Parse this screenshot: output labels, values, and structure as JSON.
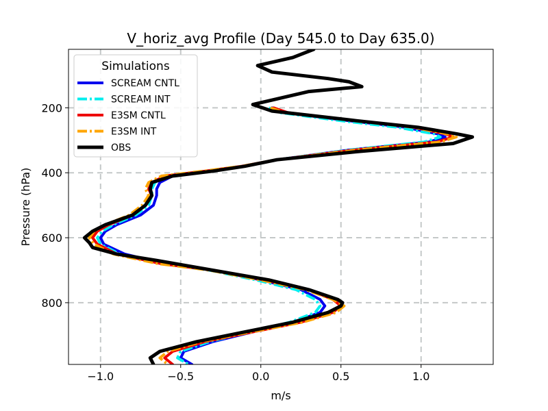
{
  "chart_data": {
    "type": "line",
    "title": "V_horiz_avg Profile (Day 545.0 to Day 635.0)",
    "xlabel": "m/s",
    "ylabel": "Pressure (hPa)",
    "xlim": [
      -1.2,
      1.45
    ],
    "ylim": [
      990,
      20
    ],
    "y_inverted": true,
    "grid": true,
    "xticks": [
      -1.0,
      -0.5,
      0.0,
      0.5,
      1.0
    ],
    "xtick_labels": [
      "−1.0",
      "−0.5",
      "0.0",
      "0.5",
      "1.0"
    ],
    "yticks": [
      200,
      400,
      600,
      800
    ],
    "ytick_labels": [
      "200",
      "400",
      "600",
      "800"
    ],
    "legend": {
      "title": "Simulations",
      "position": "top-left"
    },
    "series": [
      {
        "name": "SCREAM CNTL",
        "color": "#0000ee",
        "dash": "solid",
        "pressure": [
          200,
          215,
          240,
          260,
          280,
          290,
          305,
          330,
          360,
          380,
          395,
          410,
          430,
          450,
          470,
          500,
          530,
          560,
          580,
          600,
          620,
          650,
          680,
          700,
          730,
          760,
          790,
          810,
          830,
          860,
          890,
          920,
          950,
          970,
          990
        ],
        "values": [
          0.07,
          0.15,
          0.55,
          0.9,
          1.1,
          1.15,
          1.05,
          0.55,
          0.1,
          -0.1,
          -0.3,
          -0.55,
          -0.63,
          -0.65,
          -0.65,
          -0.67,
          -0.75,
          -0.9,
          -0.97,
          -1.0,
          -0.98,
          -0.85,
          -0.6,
          -0.3,
          0.0,
          0.25,
          0.37,
          0.4,
          0.37,
          0.2,
          -0.05,
          -0.3,
          -0.48,
          -0.5,
          -0.43
        ]
      },
      {
        "name": "SCREAM INT",
        "color": "#00eeee",
        "dash": "dashdot",
        "pressure": [
          200,
          215,
          240,
          260,
          280,
          290,
          305,
          330,
          360,
          380,
          395,
          410,
          430,
          450,
          470,
          500,
          530,
          560,
          580,
          600,
          620,
          650,
          680,
          700,
          730,
          760,
          790,
          810,
          830,
          860,
          890,
          920,
          950,
          970,
          990
        ],
        "values": [
          0.05,
          0.12,
          0.5,
          0.85,
          1.08,
          1.12,
          1.02,
          0.55,
          0.1,
          -0.1,
          -0.32,
          -0.58,
          -0.66,
          -0.68,
          -0.68,
          -0.7,
          -0.78,
          -0.92,
          -0.99,
          -1.02,
          -1.0,
          -0.88,
          -0.62,
          -0.32,
          -0.03,
          0.22,
          0.34,
          0.37,
          0.34,
          0.18,
          -0.07,
          -0.32,
          -0.5,
          -0.52,
          -0.45
        ]
      },
      {
        "name": "E3SM CNTL",
        "color": "#ee0000",
        "dash": "solid",
        "pressure": [
          200,
          215,
          240,
          260,
          280,
          290,
          305,
          330,
          360,
          380,
          395,
          410,
          430,
          450,
          470,
          500,
          530,
          560,
          580,
          600,
          620,
          650,
          680,
          700,
          730,
          760,
          790,
          810,
          830,
          860,
          890,
          920,
          950,
          970,
          990
        ],
        "values": [
          0.08,
          0.17,
          0.6,
          0.95,
          1.15,
          1.2,
          1.1,
          0.58,
          0.1,
          -0.12,
          -0.35,
          -0.6,
          -0.68,
          -0.7,
          -0.68,
          -0.72,
          -0.8,
          -0.95,
          -1.02,
          -1.05,
          -1.02,
          -0.9,
          -0.62,
          -0.3,
          0.02,
          0.3,
          0.45,
          0.5,
          0.45,
          0.25,
          -0.05,
          -0.35,
          -0.55,
          -0.6,
          -0.55
        ]
      },
      {
        "name": "E3SM INT",
        "color": "#ffa500",
        "dash": "dashdot",
        "pressure": [
          200,
          215,
          240,
          260,
          280,
          290,
          305,
          330,
          360,
          380,
          395,
          410,
          430,
          450,
          470,
          500,
          530,
          560,
          580,
          600,
          620,
          650,
          680,
          700,
          730,
          760,
          790,
          810,
          830,
          860,
          890,
          920,
          950,
          970,
          990
        ],
        "values": [
          0.06,
          0.15,
          0.58,
          0.95,
          1.16,
          1.22,
          1.12,
          0.6,
          0.1,
          -0.12,
          -0.36,
          -0.62,
          -0.7,
          -0.72,
          -0.7,
          -0.74,
          -0.82,
          -0.97,
          -1.04,
          -1.07,
          -1.04,
          -0.92,
          -0.64,
          -0.32,
          0.0,
          0.28,
          0.45,
          0.52,
          0.47,
          0.26,
          -0.06,
          -0.37,
          -0.58,
          -0.63,
          -0.58
        ]
      },
      {
        "name": "OBS",
        "color": "#000000",
        "dash": "solid",
        "pressure": [
          20,
          45,
          70,
          90,
          110,
          120,
          135,
          150,
          190,
          210,
          240,
          260,
          280,
          290,
          310,
          335,
          360,
          380,
          395,
          410,
          430,
          450,
          470,
          500,
          530,
          560,
          580,
          600,
          615,
          630,
          650,
          670,
          700,
          730,
          760,
          790,
          800,
          810,
          830,
          860,
          890,
          920,
          950,
          970,
          990
        ],
        "values": [
          0.33,
          0.2,
          -0.02,
          0.07,
          0.42,
          0.55,
          0.63,
          0.3,
          -0.05,
          0.07,
          0.6,
          0.98,
          1.22,
          1.32,
          1.2,
          0.6,
          0.1,
          -0.1,
          -0.3,
          -0.55,
          -0.68,
          -0.69,
          -0.68,
          -0.72,
          -0.8,
          -0.97,
          -1.05,
          -1.1,
          -1.07,
          -1.05,
          -0.9,
          -0.65,
          -0.3,
          0.05,
          0.3,
          0.48,
          0.51,
          0.5,
          0.42,
          0.2,
          -0.1,
          -0.4,
          -0.63,
          -0.69,
          -0.67
        ]
      }
    ]
  }
}
